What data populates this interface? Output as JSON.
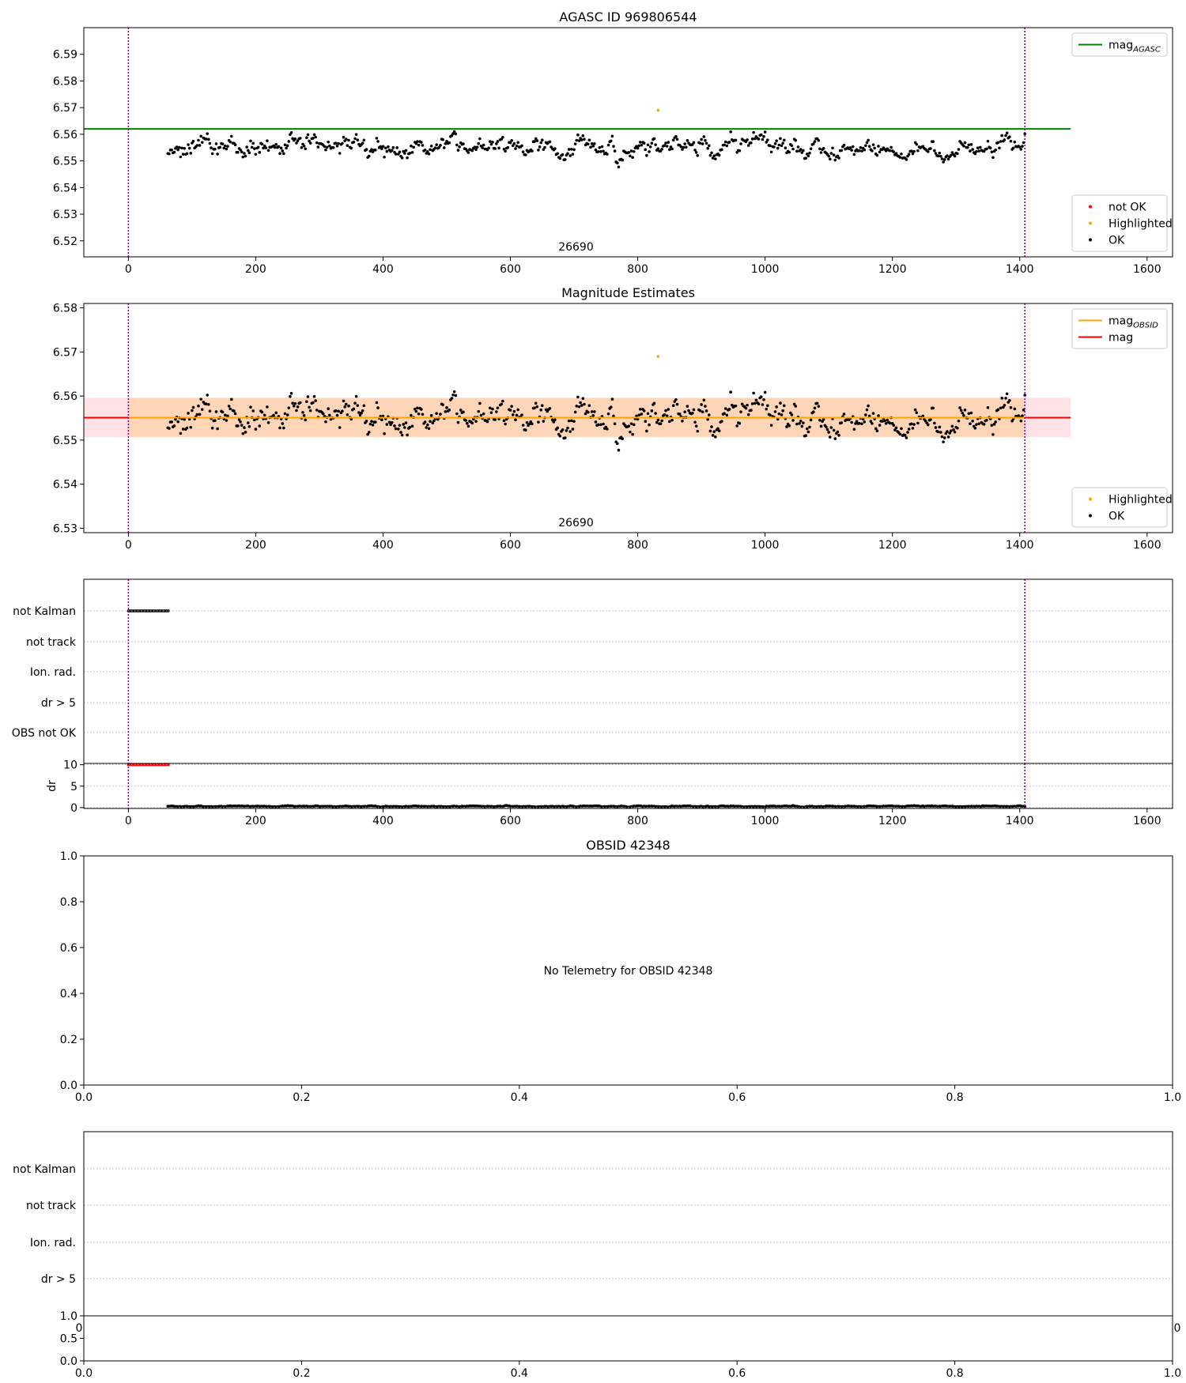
{
  "chart_data": [
    {
      "type": "scatter",
      "title": "AGASC ID 969806544",
      "xlim": [
        -70,
        1640
      ],
      "ylim": [
        6.514,
        6.6
      ],
      "xticks": [
        0,
        200,
        400,
        600,
        800,
        1000,
        1200,
        1400,
        1600
      ],
      "yticks": [
        6.52,
        6.53,
        6.54,
        6.55,
        6.56,
        6.57,
        6.58,
        6.59
      ],
      "ytick_decimals": 2,
      "vlines": {
        "x": [
          0,
          1408
        ],
        "color": "#800080",
        "style": "dotted"
      },
      "annotation": {
        "text": "26690",
        "x": 703
      },
      "hlines": [
        {
          "name": "mag_AGASC",
          "y": 6.562,
          "x_range": [
            -70,
            1480
          ],
          "color": "#008000"
        }
      ],
      "series": [
        {
          "name": "not OK",
          "color": "#ff0000",
          "x": [],
          "y": []
        },
        {
          "name": "Highlighted",
          "color": "#ffa500",
          "x": [
            832
          ],
          "y": [
            6.569
          ]
        },
        {
          "name": "OK",
          "color": "#000000",
          "x_range": [
            62,
            1408
          ],
          "x_step": 2,
          "mean": 6.555,
          "spread": 0.0045,
          "seed": 42
        }
      ],
      "legends": [
        {
          "position": "upper-right",
          "entries": [
            {
              "label": "mag",
              "sub": "AGASC",
              "kind": "line",
              "color": "#008000"
            }
          ]
        },
        {
          "position": "lower-right",
          "entries": [
            {
              "label": "not OK",
              "kind": "dot",
              "color": "#ff0000"
            },
            {
              "label": "Highlighted",
              "kind": "dot",
              "color": "#ffa500"
            },
            {
              "label": "OK",
              "kind": "dot",
              "color": "#000000"
            }
          ]
        }
      ]
    },
    {
      "type": "scatter",
      "title": "Magnitude Estimates",
      "xlim": [
        -70,
        1640
      ],
      "ylim": [
        6.529,
        6.581
      ],
      "xticks": [
        0,
        200,
        400,
        600,
        800,
        1000,
        1200,
        1400,
        1600
      ],
      "yticks": [
        6.53,
        6.54,
        6.55,
        6.56,
        6.57,
        6.58
      ],
      "ytick_decimals": 2,
      "vlines": {
        "x": [
          0,
          1408
        ],
        "color": "#800080",
        "style": "dotted"
      },
      "annotation": {
        "text": "26690",
        "x": 703
      },
      "bands": [
        {
          "name": "mag",
          "y": [
            6.5507,
            6.5596
          ],
          "x_range": [
            -70,
            1480
          ],
          "color": "#ffb6c1",
          "opacity": 0.4
        },
        {
          "name": "mag_OBSID",
          "y": [
            6.5507,
            6.5596
          ],
          "x_range": [
            0,
            1408
          ],
          "color": "#ffa500",
          "opacity": 0.2
        }
      ],
      "hlines": [
        {
          "name": "mag",
          "y": 6.5551,
          "x_range": [
            -70,
            1480
          ],
          "color": "#ff0000"
        },
        {
          "name": "mag_OBSID",
          "y": 6.5551,
          "x_range": [
            0,
            1408
          ],
          "color": "#ffa500"
        }
      ],
      "series": [
        {
          "name": "Highlighted",
          "color": "#ffa500",
          "x": [
            832
          ],
          "y": [
            6.569
          ]
        },
        {
          "name": "OK",
          "color": "#000000",
          "x_range": [
            62,
            1408
          ],
          "x_step": 2,
          "mean": 6.555,
          "spread": 0.0045,
          "seed": 42
        }
      ],
      "legends": [
        {
          "position": "upper-right",
          "entries": [
            {
              "label": "mag",
              "sub": "OBSID",
              "kind": "line",
              "color": "#ffa500"
            },
            {
              "label": "mag",
              "kind": "line",
              "color": "#ff0000"
            }
          ]
        },
        {
          "position": "lower-right",
          "entries": [
            {
              "label": "Highlighted",
              "kind": "dot",
              "color": "#ffa500"
            },
            {
              "label": "OK",
              "kind": "dot",
              "color": "#000000"
            }
          ]
        }
      ]
    },
    {
      "type": "scatter",
      "title": "",
      "xlim": [
        -70,
        1640
      ],
      "categories": [
        "not Kalman",
        "not track",
        "Ion. rad.",
        "dr > 5",
        "OBS not OK"
      ],
      "vlines": {
        "x": [
          0,
          1408
        ],
        "color": "#800080",
        "style": "dotted"
      },
      "flags": [
        {
          "category": "not Kalman",
          "x_range": [
            0,
            64
          ],
          "x_step": 1.5,
          "color": "#000000"
        }
      ]
    },
    {
      "type": "scatter",
      "title": "",
      "ylabel": "dr",
      "xlim": [
        -70,
        1640
      ],
      "ylim": [
        -0.2,
        10.3
      ],
      "xticks": [
        0,
        200,
        400,
        600,
        800,
        1000,
        1200,
        1400,
        1600
      ],
      "yticks": [
        0,
        5,
        10
      ],
      "ytick_decimals": 0,
      "vlines": {
        "x": [
          0,
          1408
        ],
        "color": "#800080",
        "style": "dotted"
      },
      "series": [
        {
          "name": "flagged",
          "color": "#ff0000",
          "x_range": [
            0,
            64
          ],
          "x_step": 1.5,
          "y_const": 10
        },
        {
          "name": "dr",
          "color": "#000000",
          "x_range": [
            62,
            1408
          ],
          "x_step": 2,
          "mean": 0.3,
          "spread": 0.15,
          "seed": 7
        }
      ]
    },
    {
      "type": "scatter",
      "title": "OBSID 42348",
      "xlim": [
        0,
        1
      ],
      "ylim": [
        0,
        1
      ],
      "xticks": [
        0,
        0.2,
        0.4,
        0.6,
        0.8,
        1.0
      ],
      "yticks": [
        0,
        0.2,
        0.4,
        0.6,
        0.8,
        1.0
      ],
      "ytick_decimals": 1,
      "center_text": "No Telemetry for OBSID 42348"
    },
    {
      "type": "scatter",
      "title": "",
      "categories": [
        "not Kalman",
        "not track",
        "Ion. rad.",
        "dr > 5"
      ],
      "overlap_ticks": {
        "left": "0",
        "right": "0"
      }
    },
    {
      "type": "scatter",
      "title": "",
      "xlim": [
        0,
        1
      ],
      "ylim": [
        0,
        1
      ],
      "xticks": [
        0,
        0.2,
        0.4,
        0.6,
        0.8,
        1.0
      ],
      "yticks": [
        0,
        0.5,
        1.0
      ],
      "ytick_decimals": 1
    }
  ]
}
